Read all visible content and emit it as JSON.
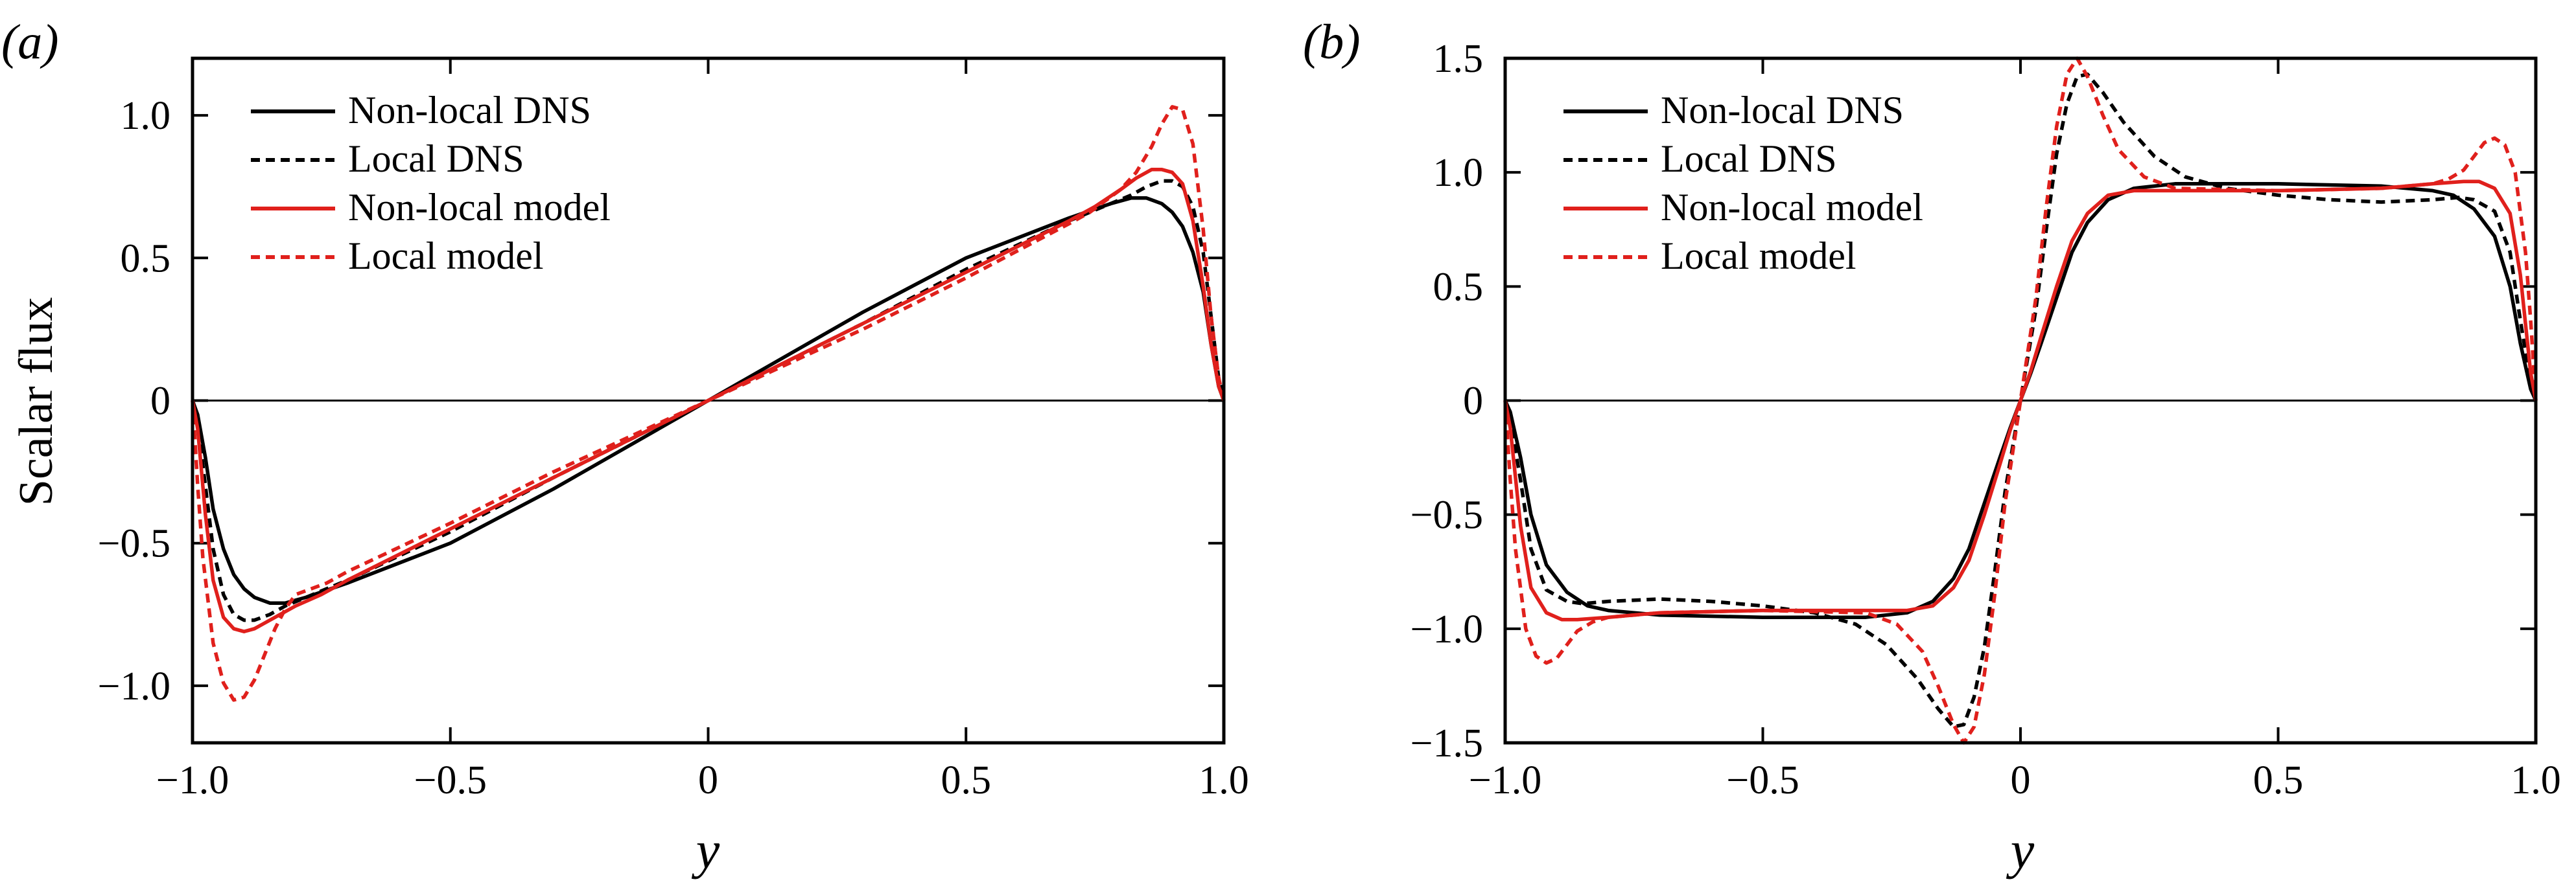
{
  "chart_data": [
    {
      "type": "line",
      "panel_label": "(a)",
      "xlabel": "y",
      "ylabel": "Scalar flux",
      "xlim": [
        -1.0,
        1.0
      ],
      "ylim": [
        -1.2,
        1.2
      ],
      "xticks": [
        -1.0,
        -0.5,
        0,
        0.5,
        1.0
      ],
      "xtick_labels": [
        "−1.0",
        "−0.5",
        "0",
        "0.5",
        "1.0"
      ],
      "yticks": [
        -1.0,
        -0.5,
        0,
        0.5,
        1.0
      ],
      "ytick_labels": [
        "−1.0",
        "−0.5",
        "0",
        "0.5",
        "1.0"
      ],
      "zero_line": true,
      "grid": false,
      "legend_position": "upper-left",
      "series": [
        {
          "name": "Non-local DNS",
          "color": "#000000",
          "dash": "solid",
          "x": [
            -1.0,
            -0.99,
            -0.975,
            -0.96,
            -0.94,
            -0.92,
            -0.9,
            -0.88,
            -0.85,
            -0.82,
            -0.78,
            -0.7,
            -0.5,
            -0.3,
            0,
            0.3,
            0.5,
            0.7,
            0.78,
            0.82,
            0.85,
            0.88,
            0.9,
            0.92,
            0.94,
            0.96,
            0.975,
            0.99,
            1.0
          ],
          "y": [
            0,
            -0.05,
            -0.2,
            -0.38,
            -0.52,
            -0.61,
            -0.66,
            -0.69,
            -0.71,
            -0.71,
            -0.69,
            -0.64,
            -0.5,
            -0.31,
            0,
            0.31,
            0.5,
            0.64,
            0.69,
            0.71,
            0.71,
            0.69,
            0.66,
            0.61,
            0.52,
            0.38,
            0.2,
            0.05,
            0
          ]
        },
        {
          "name": "Local DNS",
          "color": "#000000",
          "dash": "dashed",
          "x": [
            -1.0,
            -0.99,
            -0.975,
            -0.96,
            -0.94,
            -0.92,
            -0.9,
            -0.88,
            -0.85,
            -0.82,
            -0.78,
            -0.7,
            -0.5,
            -0.3,
            0,
            0.3,
            0.5,
            0.7,
            0.78,
            0.82,
            0.85,
            0.88,
            0.9,
            0.92,
            0.94,
            0.96,
            0.975,
            0.99,
            1.0
          ],
          "y": [
            0,
            -0.08,
            -0.3,
            -0.52,
            -0.68,
            -0.75,
            -0.77,
            -0.77,
            -0.75,
            -0.72,
            -0.69,
            -0.63,
            -0.46,
            -0.27,
            0,
            0.27,
            0.46,
            0.63,
            0.69,
            0.72,
            0.75,
            0.77,
            0.77,
            0.75,
            0.68,
            0.52,
            0.3,
            0.08,
            0
          ]
        },
        {
          "name": "Non-local model",
          "color": "#e0201c",
          "dash": "solid",
          "x": [
            -1.0,
            -0.99,
            -0.975,
            -0.96,
            -0.94,
            -0.92,
            -0.9,
            -0.88,
            -0.86,
            -0.83,
            -0.8,
            -0.75,
            -0.7,
            -0.5,
            -0.3,
            0,
            0.3,
            0.5,
            0.7,
            0.75,
            0.8,
            0.83,
            0.86,
            0.88,
            0.9,
            0.92,
            0.94,
            0.96,
            0.975,
            0.99,
            1.0
          ],
          "y": [
            0,
            -0.1,
            -0.4,
            -0.63,
            -0.76,
            -0.8,
            -0.81,
            -0.8,
            -0.78,
            -0.75,
            -0.72,
            -0.68,
            -0.63,
            -0.45,
            -0.27,
            0,
            0.27,
            0.45,
            0.63,
            0.68,
            0.74,
            0.78,
            0.81,
            0.81,
            0.8,
            0.76,
            0.63,
            0.4,
            0.2,
            0.05,
            0
          ]
        },
        {
          "name": "Local model",
          "color": "#e0201c",
          "dash": "dashed",
          "x": [
            -1.0,
            -0.99,
            -0.98,
            -0.96,
            -0.94,
            -0.92,
            -0.9,
            -0.88,
            -0.86,
            -0.84,
            -0.82,
            -0.8,
            -0.77,
            -0.74,
            -0.7,
            -0.5,
            -0.3,
            0,
            0.3,
            0.5,
            0.7,
            0.74,
            0.77,
            0.8,
            0.83,
            0.86,
            0.88,
            0.9,
            0.92,
            0.94,
            0.96,
            0.975,
            0.99,
            1.0
          ],
          "y": [
            0,
            -0.3,
            -0.55,
            -0.85,
            -0.99,
            -1.05,
            -1.04,
            -0.98,
            -0.89,
            -0.8,
            -0.73,
            -0.68,
            -0.66,
            -0.64,
            -0.6,
            -0.43,
            -0.25,
            0,
            0.25,
            0.43,
            0.62,
            0.66,
            0.7,
            0.74,
            0.8,
            0.89,
            0.97,
            1.03,
            1.02,
            0.9,
            0.6,
            0.3,
            0.08,
            0
          ]
        }
      ]
    },
    {
      "type": "line",
      "panel_label": "(b)",
      "xlabel": "y",
      "ylabel": "",
      "xlim": [
        -1.0,
        1.0
      ],
      "ylim": [
        -1.5,
        1.5
      ],
      "xticks": [
        -1.0,
        -0.5,
        0,
        0.5,
        1.0
      ],
      "xtick_labels": [
        "−1.0",
        "−0.5",
        "0",
        "0.5",
        "1.0"
      ],
      "yticks": [
        -1.5,
        -1.0,
        -0.5,
        0,
        0.5,
        1.0,
        1.5
      ],
      "ytick_labels": [
        "−1.5",
        "−1.0",
        "−0.5",
        "0",
        "0.5",
        "1.0",
        "1.5"
      ],
      "zero_line": true,
      "grid": false,
      "legend_position": "upper-left",
      "series": [
        {
          "name": "Non-local DNS",
          "color": "#000000",
          "dash": "solid",
          "x": [
            -1.0,
            -0.99,
            -0.97,
            -0.95,
            -0.92,
            -0.88,
            -0.84,
            -0.8,
            -0.7,
            -0.5,
            -0.3,
            -0.22,
            -0.17,
            -0.13,
            -0.1,
            -0.07,
            -0.04,
            -0.02,
            0,
            0.02,
            0.04,
            0.07,
            0.1,
            0.13,
            0.17,
            0.22,
            0.3,
            0.5,
            0.7,
            0.8,
            0.84,
            0.88,
            0.92,
            0.95,
            0.97,
            0.99,
            1.0
          ],
          "y": [
            0,
            -0.05,
            -0.25,
            -0.5,
            -0.72,
            -0.84,
            -0.9,
            -0.92,
            -0.94,
            -0.95,
            -0.95,
            -0.93,
            -0.88,
            -0.78,
            -0.65,
            -0.45,
            -0.25,
            -0.12,
            0,
            0.12,
            0.25,
            0.45,
            0.65,
            0.78,
            0.88,
            0.93,
            0.95,
            0.95,
            0.94,
            0.92,
            0.9,
            0.84,
            0.72,
            0.5,
            0.25,
            0.05,
            0
          ]
        },
        {
          "name": "Local DNS",
          "color": "#000000",
          "dash": "dashed",
          "x": [
            -1.0,
            -0.99,
            -0.97,
            -0.95,
            -0.92,
            -0.88,
            -0.85,
            -0.8,
            -0.7,
            -0.6,
            -0.5,
            -0.4,
            -0.32,
            -0.26,
            -0.2,
            -0.16,
            -0.13,
            -0.11,
            -0.09,
            -0.07,
            -0.05,
            -0.03,
            0,
            0.03,
            0.05,
            0.07,
            0.09,
            0.11,
            0.13,
            0.16,
            0.2,
            0.26,
            0.32,
            0.4,
            0.5,
            0.6,
            0.7,
            0.8,
            0.85,
            0.88,
            0.92,
            0.95,
            0.97,
            0.99,
            1.0
          ],
          "y": [
            0,
            -0.08,
            -0.35,
            -0.65,
            -0.83,
            -0.88,
            -0.89,
            -0.88,
            -0.87,
            -0.88,
            -0.9,
            -0.93,
            -0.98,
            -1.07,
            -1.22,
            -1.35,
            -1.43,
            -1.42,
            -1.3,
            -1.08,
            -0.75,
            -0.4,
            0,
            0.4,
            0.75,
            1.08,
            1.3,
            1.42,
            1.43,
            1.35,
            1.22,
            1.07,
            0.98,
            0.93,
            0.9,
            0.88,
            0.87,
            0.88,
            0.89,
            0.88,
            0.83,
            0.65,
            0.35,
            0.08,
            0
          ]
        },
        {
          "name": "Non-local model",
          "color": "#e0201c",
          "dash": "solid",
          "x": [
            -1.0,
            -0.99,
            -0.97,
            -0.95,
            -0.92,
            -0.89,
            -0.86,
            -0.8,
            -0.7,
            -0.5,
            -0.3,
            -0.22,
            -0.17,
            -0.13,
            -0.1,
            -0.07,
            -0.04,
            -0.02,
            0,
            0.02,
            0.04,
            0.07,
            0.1,
            0.13,
            0.17,
            0.22,
            0.3,
            0.5,
            0.7,
            0.8,
            0.86,
            0.89,
            0.92,
            0.95,
            0.97,
            0.99,
            1.0
          ],
          "y": [
            0,
            -0.12,
            -0.55,
            -0.82,
            -0.93,
            -0.96,
            -0.96,
            -0.95,
            -0.93,
            -0.92,
            -0.92,
            -0.92,
            -0.9,
            -0.82,
            -0.7,
            -0.5,
            -0.28,
            -0.13,
            0,
            0.13,
            0.28,
            0.5,
            0.7,
            0.82,
            0.9,
            0.92,
            0.92,
            0.92,
            0.93,
            0.95,
            0.96,
            0.96,
            0.93,
            0.82,
            0.55,
            0.12,
            0
          ]
        },
        {
          "name": "Local model",
          "color": "#e0201c",
          "dash": "dashed",
          "x": [
            -1.0,
            -0.99,
            -0.98,
            -0.96,
            -0.94,
            -0.92,
            -0.9,
            -0.88,
            -0.86,
            -0.83,
            -0.8,
            -0.75,
            -0.7,
            -0.5,
            -0.3,
            -0.24,
            -0.19,
            -0.16,
            -0.13,
            -0.11,
            -0.09,
            -0.07,
            -0.05,
            -0.03,
            0,
            0.03,
            0.05,
            0.07,
            0.09,
            0.11,
            0.13,
            0.16,
            0.19,
            0.24,
            0.3,
            0.5,
            0.7,
            0.75,
            0.8,
            0.83,
            0.86,
            0.88,
            0.9,
            0.92,
            0.94,
            0.96,
            0.98,
            0.99,
            1.0
          ],
          "y": [
            0,
            -0.35,
            -0.65,
            -1.0,
            -1.12,
            -1.15,
            -1.13,
            -1.07,
            -1.01,
            -0.97,
            -0.95,
            -0.94,
            -0.93,
            -0.92,
            -0.93,
            -0.98,
            -1.1,
            -1.25,
            -1.42,
            -1.5,
            -1.43,
            -1.2,
            -0.85,
            -0.45,
            0,
            0.45,
            0.85,
            1.2,
            1.43,
            1.5,
            1.42,
            1.25,
            1.1,
            0.98,
            0.93,
            0.92,
            0.93,
            0.94,
            0.95,
            0.97,
            1.01,
            1.07,
            1.13,
            1.15,
            1.12,
            1.0,
            0.65,
            0.35,
            0
          ]
        }
      ]
    }
  ]
}
